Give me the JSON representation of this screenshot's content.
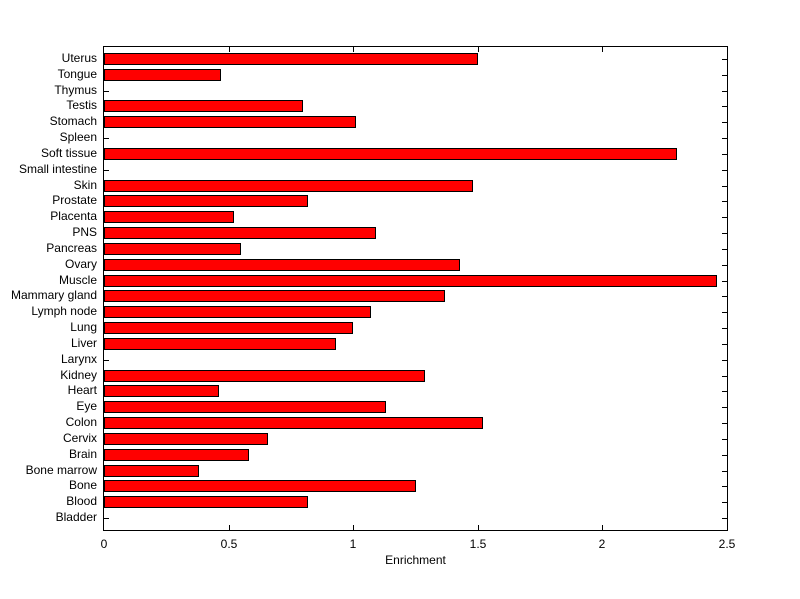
{
  "chart_data": {
    "type": "bar",
    "orientation": "horizontal",
    "title": "",
    "xlabel": "Enrichment",
    "ylabel": "",
    "xlim": [
      0,
      2.5
    ],
    "xticks": [
      0,
      0.5,
      1,
      1.5,
      2,
      2.5
    ],
    "xtick_labels": [
      "0",
      "0.5",
      "1",
      "1.5",
      "2",
      "2.5"
    ],
    "grid": false,
    "legend": null,
    "bar_fill_color": "#ff0000",
    "bar_edge_color": "#000000",
    "axis_color": "#000000",
    "background_color": "#ffffff",
    "categories_top_to_bottom": [
      "Uterus",
      "Tongue",
      "Thymus",
      "Testis",
      "Stomach",
      "Spleen",
      "Soft tissue",
      "Small intestine",
      "Skin",
      "Prostate",
      "Placenta",
      "PNS",
      "Pancreas",
      "Ovary",
      "Muscle",
      "Mammary gland",
      "Lymph node",
      "Lung",
      "Liver",
      "Larynx",
      "Kidney",
      "Heart",
      "Eye",
      "Colon",
      "Cervix",
      "Brain",
      "Bone marrow",
      "Bone",
      "Blood",
      "Bladder"
    ],
    "values_top_to_bottom": [
      1.5,
      0.47,
      0,
      0.8,
      1.01,
      0,
      2.3,
      0,
      1.48,
      0.82,
      0.52,
      1.09,
      0.55,
      1.43,
      2.46,
      1.37,
      1.07,
      1.0,
      0.93,
      0,
      1.29,
      0.46,
      1.13,
      1.52,
      0.66,
      0.58,
      0.38,
      1.25,
      0.82,
      0
    ]
  }
}
